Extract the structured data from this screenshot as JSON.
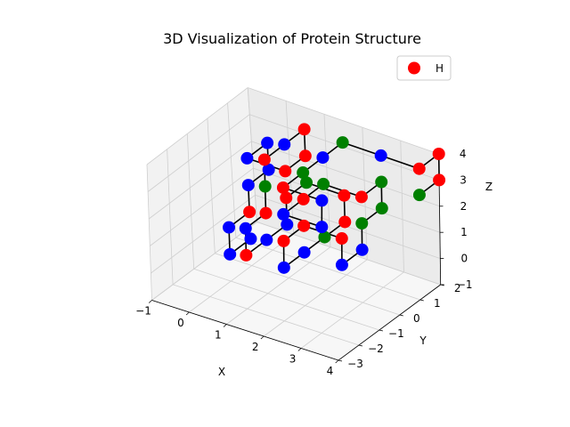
{
  "chart_data": {
    "type": "scatter3d",
    "title": "3D Visualization of Protein Structure",
    "xlabel": "X",
    "ylabel": "Y",
    "zlabel": "Z",
    "xlim": [
      -1,
      4
    ],
    "ylim": [
      -3,
      2
    ],
    "zlim": [
      -1,
      4
    ],
    "x_ticks": [
      "−1",
      "0",
      "1",
      "2",
      "3",
      "4"
    ],
    "y_ticks": [
      "−3",
      "−2",
      "−1",
      "0",
      "1",
      "2"
    ],
    "z_ticks": [
      "−1",
      "0",
      "1",
      "2",
      "3",
      "4"
    ],
    "grid": true,
    "legend": {
      "position": "top-right",
      "entries": [
        {
          "label": "H",
          "color": "#ff0000"
        }
      ]
    },
    "colors": {
      "H": "#ff0000",
      "P": "#0000ff",
      "O": "#008000",
      "bond": "#000000"
    },
    "points": [
      {
        "x": 0,
        "y": 0,
        "z": 0,
        "t": "P"
      },
      {
        "x": 0,
        "y": -1,
        "z": 0,
        "t": "P"
      },
      {
        "x": 0,
        "y": -1,
        "z": 1,
        "t": "P"
      },
      {
        "x": 0,
        "y": 0,
        "z": 1,
        "t": "H"
      },
      {
        "x": 0,
        "y": 0,
        "z": 2,
        "t": "P"
      },
      {
        "x": 0,
        "y": 1,
        "z": 2,
        "t": "P"
      },
      {
        "x": 0,
        "y": 1,
        "z": 3,
        "t": "P"
      },
      {
        "x": 0,
        "y": 0,
        "z": 3,
        "t": "P"
      },
      {
        "x": 1,
        "y": 0,
        "z": 3,
        "t": "H"
      },
      {
        "x": 1,
        "y": 1,
        "z": 3,
        "t": "H"
      },
      {
        "x": 1,
        "y": 1,
        "z": 4,
        "t": "H"
      },
      {
        "x": 1,
        "y": 0,
        "z": 4,
        "t": "P"
      },
      {
        "x": 1,
        "y": -1,
        "z": 4,
        "t": "H"
      },
      {
        "x": 1,
        "y": -1,
        "z": 3,
        "t": "O"
      },
      {
        "x": 1,
        "y": -1,
        "z": 2,
        "t": "H"
      },
      {
        "x": 1,
        "y": -2,
        "z": 2,
        "t": "P"
      },
      {
        "x": 1,
        "y": -2,
        "z": 1,
        "t": "H"
      },
      {
        "x": 1,
        "y": -1,
        "z": 1,
        "t": "P"
      },
      {
        "x": 1,
        "y": 0,
        "z": 1,
        "t": "P"
      },
      {
        "x": 1,
        "y": 0,
        "z": 2,
        "t": "H"
      },
      {
        "x": 1,
        "y": 1,
        "z": 2,
        "t": "O"
      },
      {
        "x": 2,
        "y": 1,
        "z": 2,
        "t": "H"
      },
      {
        "x": 2,
        "y": 1,
        "z": 1,
        "t": "H"
      },
      {
        "x": 2,
        "y": 0,
        "z": 1,
        "t": "O"
      },
      {
        "x": 2,
        "y": -1,
        "z": 1,
        "t": "P"
      },
      {
        "x": 2,
        "y": -2,
        "z": 1,
        "t": "P"
      },
      {
        "x": 2,
        "y": -2,
        "z": 2,
        "t": "H"
      },
      {
        "x": 2,
        "y": -1,
        "z": 2,
        "t": "H"
      },
      {
        "x": 3,
        "y": -1,
        "z": 2,
        "t": "H"
      },
      {
        "x": 3,
        "y": -1,
        "z": 1,
        "t": "P"
      },
      {
        "x": 3,
        "y": 0,
        "z": 1,
        "t": "P"
      },
      {
        "x": 3,
        "y": 0,
        "z": 2,
        "t": "O"
      },
      {
        "x": 3,
        "y": 1,
        "z": 2,
        "t": "O"
      },
      {
        "x": 3,
        "y": 1,
        "z": 3,
        "t": "O"
      },
      {
        "x": 3,
        "y": 0,
        "z": 3,
        "t": "H"
      },
      {
        "x": 2,
        "y": 0,
        "z": 3,
        "t": "O"
      },
      {
        "x": 2,
        "y": -1,
        "z": 3,
        "t": "H"
      },
      {
        "x": 2,
        "y": -2,
        "z": 3,
        "t": "P"
      },
      {
        "x": 3,
        "y": -2,
        "z": 3,
        "t": "P"
      },
      {
        "x": 3,
        "y": -2,
        "z": 4,
        "t": "P"
      },
      {
        "x": 2,
        "y": -2,
        "z": 4,
        "t": "H"
      },
      {
        "x": 2,
        "y": -1,
        "z": 4,
        "t": "O"
      },
      {
        "x": 2,
        "y": 0,
        "z": 4,
        "t": "P"
      },
      {
        "x": 2,
        "y": 1,
        "z": 4,
        "t": "O"
      },
      {
        "x": 3,
        "y": 1,
        "z": 4,
        "t": "P"
      },
      {
        "x": 4,
        "y": 1,
        "z": 4,
        "t": "H"
      },
      {
        "x": 4,
        "y": 2,
        "z": 4,
        "t": "H"
      },
      {
        "x": 4,
        "y": 2,
        "z": 3,
        "t": "H"
      },
      {
        "x": 4,
        "y": 1,
        "z": 3,
        "t": "O"
      }
    ]
  }
}
